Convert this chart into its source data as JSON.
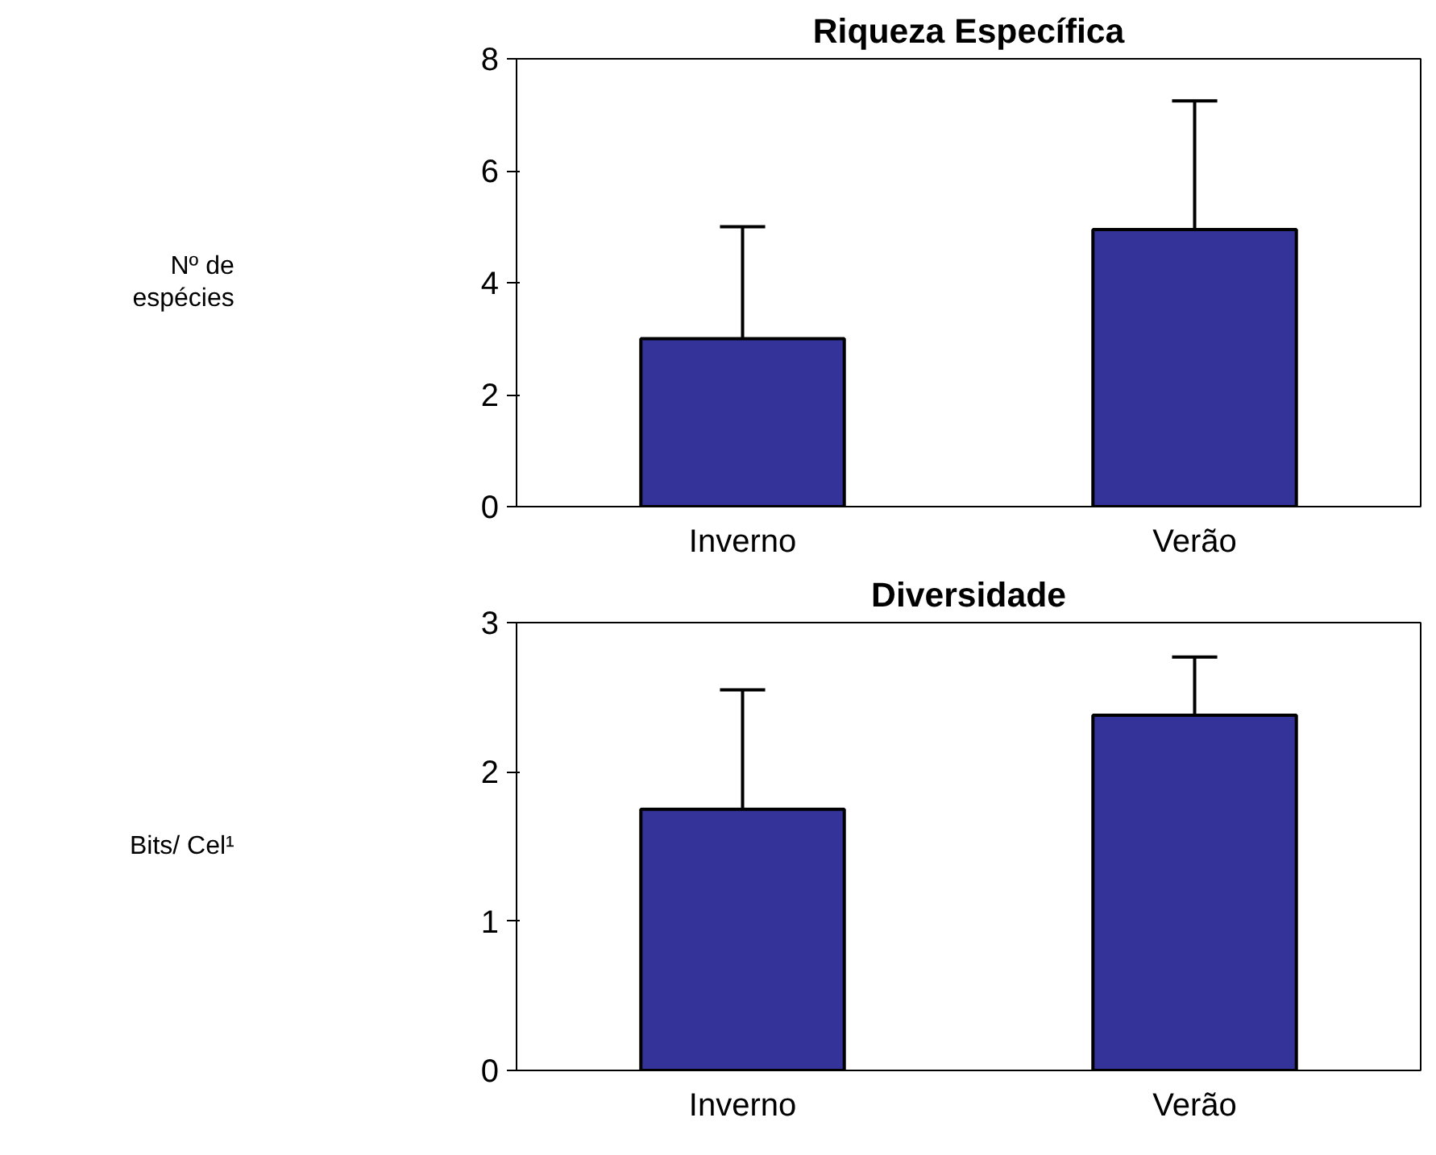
{
  "chart_data": [
    {
      "type": "bar",
      "title": "Riqueza Específica",
      "ylabel": "Nº de\nespécies",
      "categories": [
        "Inverno",
        "Verão"
      ],
      "values": [
        3,
        4.95
      ],
      "errors": [
        [
          3,
          5
        ],
        [
          4.95,
          7.25
        ]
      ],
      "color": "#333399",
      "ylim": [
        0,
        8
      ],
      "yticks": [
        0,
        2,
        4,
        6,
        8
      ],
      "grid": false
    },
    {
      "type": "bar",
      "title": "Diversidade",
      "ylabel": "Bits/ Cel¹",
      "categories": [
        "Inverno",
        "Verão"
      ],
      "values": [
        1.75,
        2.38
      ],
      "errors": [
        [
          1.75,
          2.55
        ],
        [
          2.38,
          2.77
        ]
      ],
      "color": "#333399",
      "ylim": [
        0,
        3
      ],
      "yticks": [
        0,
        1,
        2,
        3
      ],
      "grid": false
    }
  ]
}
